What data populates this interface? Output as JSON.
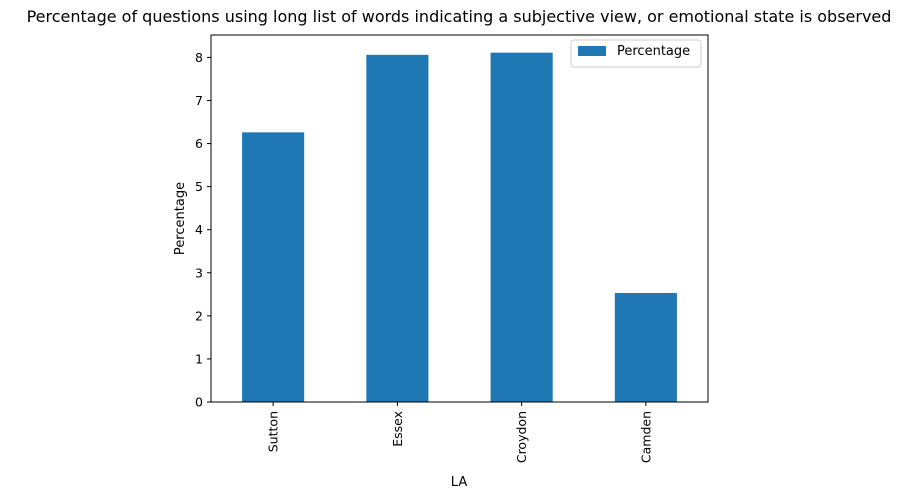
{
  "chart_data": {
    "type": "bar",
    "title": "Percentage of questions using long list of words indicating a subjective view, or emotional state is observed",
    "xlabel": "LA",
    "ylabel": "Percentage",
    "categories": [
      "Sutton",
      "Essex",
      "Croydon",
      "Camden"
    ],
    "series": [
      {
        "name": "Percentage",
        "values": [
          6.26,
          8.06,
          8.11,
          2.53
        ],
        "color": "#1f77b4"
      }
    ],
    "ylim": [
      0,
      8.52
    ],
    "yticks": [
      "0",
      "1",
      "2",
      "3",
      "4",
      "5",
      "6",
      "7",
      "8"
    ],
    "grid": false,
    "legend_position": "top-right"
  }
}
